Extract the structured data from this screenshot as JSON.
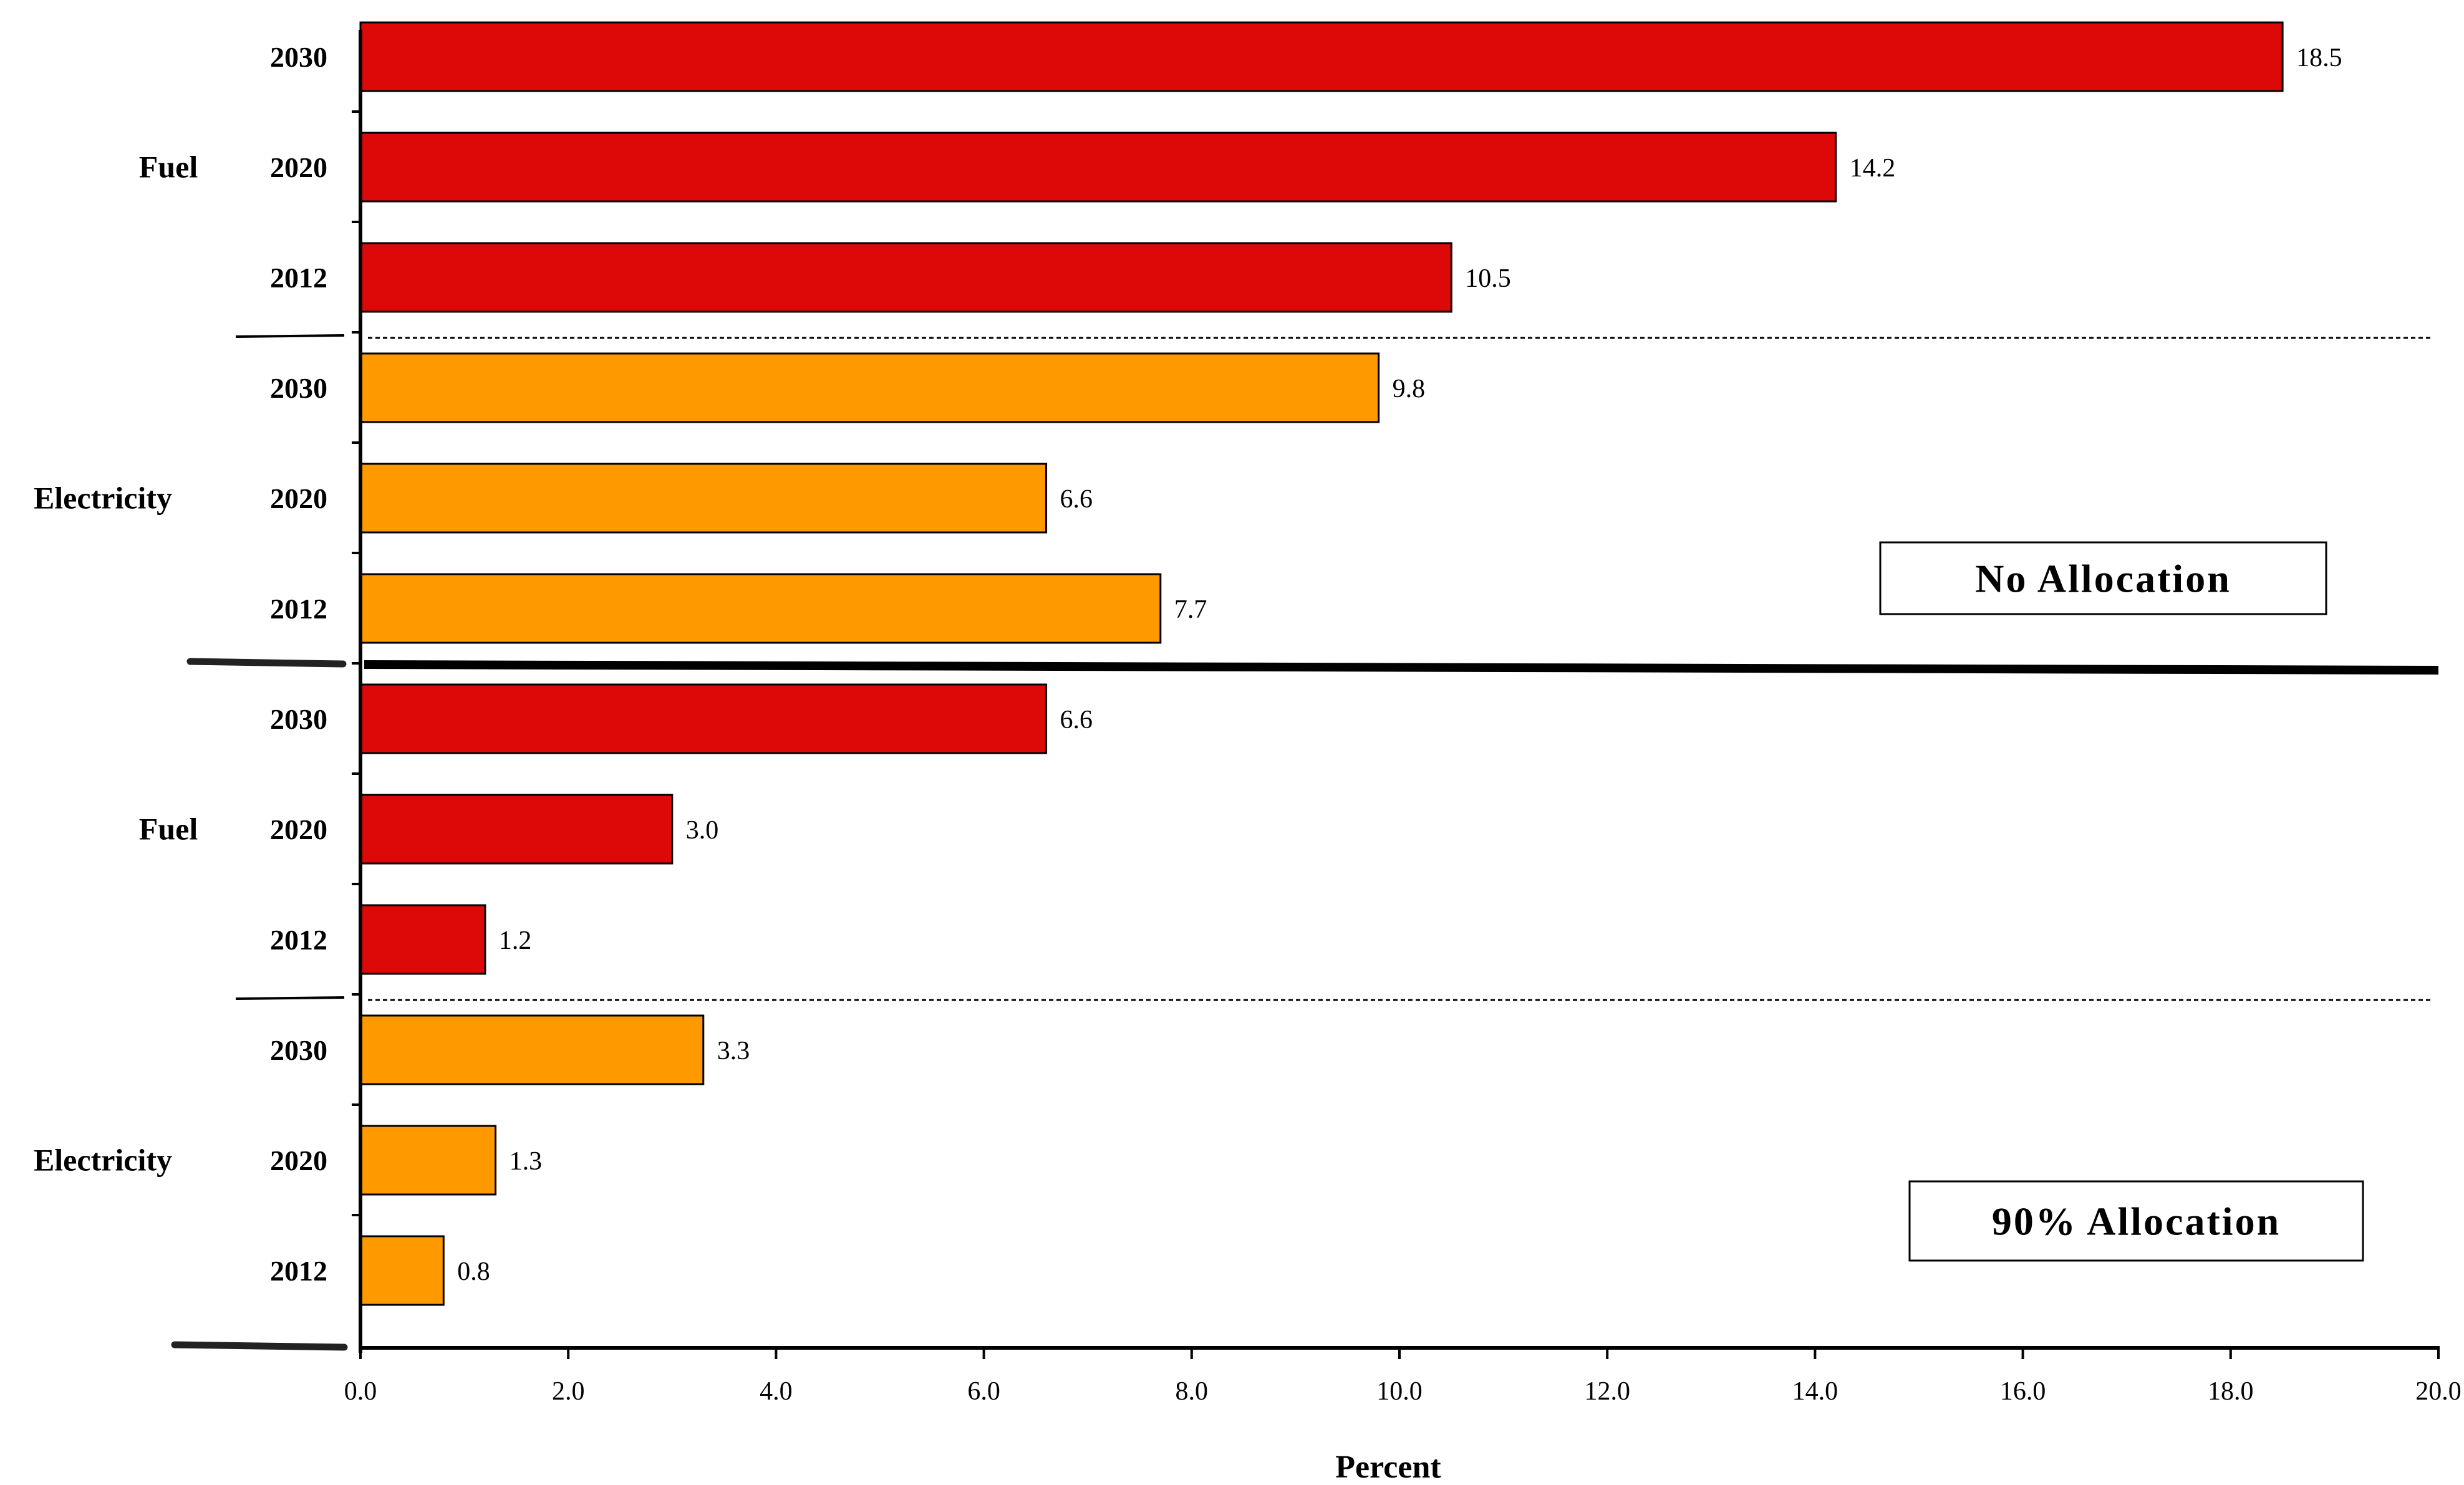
{
  "chart_data": {
    "type": "bar",
    "orientation": "horizontal",
    "xlabel": "Percent",
    "xlim": [
      0,
      20
    ],
    "x_ticks": [
      "0.0",
      "2.0",
      "4.0",
      "6.0",
      "8.0",
      "10.0",
      "12.0",
      "14.0",
      "16.0",
      "18.0",
      "20.0"
    ],
    "colors": {
      "Fuel": "#dd0808",
      "Electricity": "#ff9900"
    },
    "panels": [
      {
        "name": "No Allocation",
        "groups": [
          {
            "label": "Fuel",
            "bars": [
              {
                "year": "2030",
                "value": 18.5,
                "label": "18.5"
              },
              {
                "year": "2020",
                "value": 14.2,
                "label": "14.2"
              },
              {
                "year": "2012",
                "value": 10.5,
                "label": "10.5"
              }
            ]
          },
          {
            "label": "Electricity",
            "bars": [
              {
                "year": "2030",
                "value": 9.8,
                "label": "9.8"
              },
              {
                "year": "2020",
                "value": 6.6,
                "label": "6.6"
              },
              {
                "year": "2012",
                "value": 7.7,
                "label": "7.7"
              }
            ]
          }
        ]
      },
      {
        "name": "90% Allocation",
        "groups": [
          {
            "label": "Fuel",
            "bars": [
              {
                "year": "2030",
                "value": 6.6,
                "label": "6.6"
              },
              {
                "year": "2020",
                "value": 3.0,
                "label": "3.0"
              },
              {
                "year": "2012",
                "value": 1.2,
                "label": "1.2"
              }
            ]
          },
          {
            "label": "Electricity",
            "bars": [
              {
                "year": "2030",
                "value": 3.3,
                "label": "3.3"
              },
              {
                "year": "2020",
                "value": 1.3,
                "label": "1.3"
              },
              {
                "year": "2012",
                "value": 0.8,
                "label": "0.8"
              }
            ]
          }
        ]
      }
    ]
  }
}
